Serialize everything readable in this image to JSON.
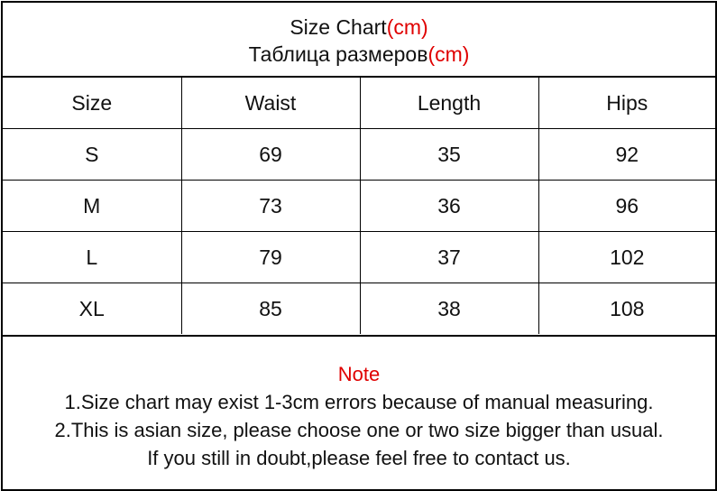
{
  "title": {
    "line1": "Size Chart",
    "line1_unit": "(cm)",
    "line2": "Таблица размеров",
    "line2_unit": "(cm)"
  },
  "table": {
    "headers": [
      "Size",
      "Waist",
      "Length",
      "Hips"
    ],
    "rows": [
      [
        "S",
        "69",
        "35",
        "92"
      ],
      [
        "M",
        "73",
        "36",
        "96"
      ],
      [
        "L",
        "79",
        "37",
        "102"
      ],
      [
        "XL",
        "85",
        "38",
        "108"
      ]
    ]
  },
  "notes": {
    "heading": "Note",
    "lines": [
      "1.Size chart may exist 1-3cm errors because of manual measuring.",
      "2.This is asian size, please choose one or two size bigger than usual.",
      "If you still in doubt,please feel free to contact us."
    ]
  },
  "colors": {
    "accent": "#e00000",
    "border": "#000000"
  }
}
